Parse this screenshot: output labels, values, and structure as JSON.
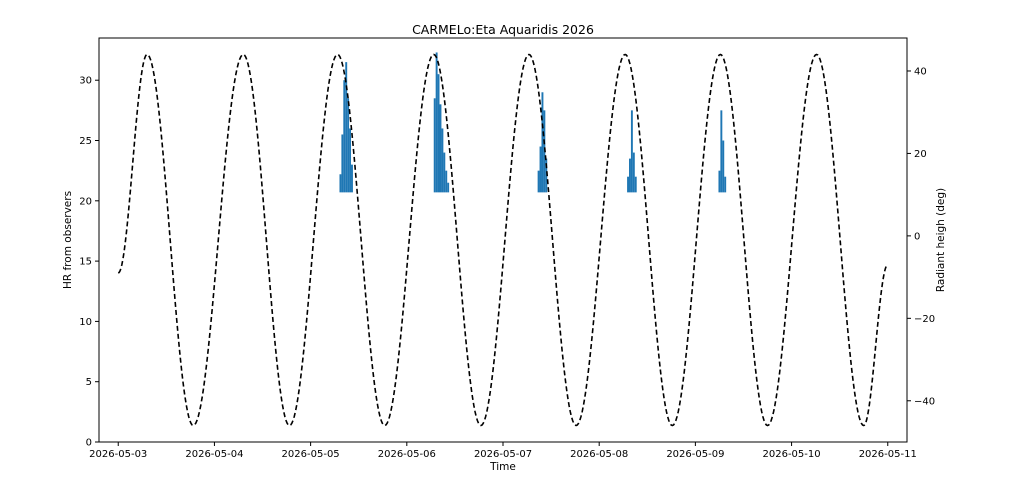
{
  "chart_data": {
    "type": "bar",
    "title": "CARMELo:Eta Aquaridis 2026",
    "xlabel": "Time",
    "ylabel": "HR from observers",
    "y2label": "Radiant heigh (deg)",
    "xlim": [
      -0.2,
      8.2
    ],
    "ylim": [
      0,
      33.5
    ],
    "y2lim": [
      -50,
      48
    ],
    "x_ticks": [
      {
        "value": 0,
        "label": "2026-05-03"
      },
      {
        "value": 1,
        "label": "2026-05-04"
      },
      {
        "value": 2,
        "label": "2026-05-05"
      },
      {
        "value": 3,
        "label": "2026-05-06"
      },
      {
        "value": 4,
        "label": "2026-05-07"
      },
      {
        "value": 5,
        "label": "2026-05-08"
      },
      {
        "value": 6,
        "label": "2026-05-09"
      },
      {
        "value": 7,
        "label": "2026-05-10"
      },
      {
        "value": 8,
        "label": "2026-05-11"
      }
    ],
    "y_ticks": [
      0,
      5,
      10,
      15,
      20,
      25,
      30
    ],
    "y2_ticks": [
      -40,
      -20,
      0,
      20,
      40
    ],
    "grid": false,
    "colors": {
      "bars": "#1f77b4",
      "radiant_line": "#000000"
    },
    "radiant_height": {
      "style": "dashed",
      "start_x": 0.0,
      "end_x": 8.0,
      "max_deg": 44,
      "min_deg": -46,
      "start_deg": -9,
      "end_deg": -7,
      "peak_times": [
        0.3,
        1.3,
        2.28,
        3.28,
        4.27,
        5.27,
        6.26,
        7.26
      ],
      "trough_times": [
        0.78,
        1.78,
        2.77,
        3.77,
        4.76,
        5.76,
        6.75,
        7.75
      ]
    },
    "hr_series": [
      {
        "name": "",
        "bars": [
          {
            "x": 2.3,
            "w": 0.02,
            "v": 22.2
          },
          {
            "x": 2.32,
            "w": 0.02,
            "v": 25.5
          },
          {
            "x": 2.34,
            "w": 0.02,
            "v": 30.0
          },
          {
            "x": 2.36,
            "w": 0.02,
            "v": 31.5
          },
          {
            "x": 2.38,
            "w": 0.02,
            "v": 28.5
          },
          {
            "x": 2.4,
            "w": 0.02,
            "v": 26.0
          },
          {
            "x": 2.42,
            "w": 0.02,
            "v": 23.0
          },
          {
            "x": 3.28,
            "w": 0.02,
            "v": 28.5
          },
          {
            "x": 3.3,
            "w": 0.02,
            "v": 32.3
          },
          {
            "x": 3.32,
            "w": 0.02,
            "v": 30.5
          },
          {
            "x": 3.34,
            "w": 0.02,
            "v": 28.0
          },
          {
            "x": 3.36,
            "w": 0.02,
            "v": 26.0
          },
          {
            "x": 3.38,
            "w": 0.02,
            "v": 24.0
          },
          {
            "x": 3.4,
            "w": 0.02,
            "v": 22.5
          },
          {
            "x": 3.42,
            "w": 0.02,
            "v": 21.5
          },
          {
            "x": 4.36,
            "w": 0.02,
            "v": 22.5
          },
          {
            "x": 4.38,
            "w": 0.02,
            "v": 24.5
          },
          {
            "x": 4.4,
            "w": 0.02,
            "v": 29.0
          },
          {
            "x": 4.42,
            "w": 0.02,
            "v": 27.5
          },
          {
            "x": 4.44,
            "w": 0.02,
            "v": 23.5
          },
          {
            "x": 5.29,
            "w": 0.02,
            "v": 22.0
          },
          {
            "x": 5.31,
            "w": 0.02,
            "v": 23.5
          },
          {
            "x": 5.33,
            "w": 0.02,
            "v": 27.5
          },
          {
            "x": 5.35,
            "w": 0.02,
            "v": 24.0
          },
          {
            "x": 5.37,
            "w": 0.02,
            "v": 22.0
          },
          {
            "x": 6.24,
            "w": 0.02,
            "v": 22.5
          },
          {
            "x": 6.26,
            "w": 0.02,
            "v": 27.5
          },
          {
            "x": 6.28,
            "w": 0.02,
            "v": 25.0
          },
          {
            "x": 6.3,
            "w": 0.02,
            "v": 22.0
          }
        ],
        "baseline": 20.7
      }
    ]
  }
}
